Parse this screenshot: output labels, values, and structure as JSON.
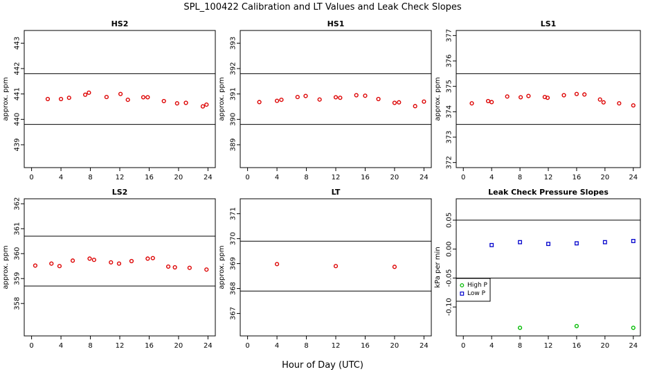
{
  "figure": {
    "title": "SPL_100422  Calibration and LT Values and Leak Check Slopes",
    "xlabel": "Hour of Day (UTC)"
  },
  "chart_data": [
    {
      "type": "scatter",
      "title": "HS2",
      "ylabel": "approx. ppm",
      "xlim": [
        -1,
        25
      ],
      "ylim": [
        438.1,
        443.5
      ],
      "xticks": [
        0,
        4,
        8,
        12,
        16,
        20,
        24
      ],
      "yticks": [
        439,
        440,
        441,
        442,
        443
      ],
      "hlines": [
        439.8,
        441.8
      ],
      "series": [
        {
          "color": "#dd0000",
          "marker": "circle",
          "x": [
            2.2,
            4,
            5.1,
            7.3,
            7.8,
            10.2,
            12.1,
            13.1,
            15.2,
            15.8,
            18,
            19.8,
            21,
            23.3,
            23.8
          ],
          "y": [
            440.8,
            440.8,
            440.85,
            440.97,
            441.05,
            440.88,
            441.0,
            440.77,
            440.87,
            440.87,
            440.72,
            440.63,
            440.65,
            440.51,
            440.58
          ]
        }
      ]
    },
    {
      "type": "scatter",
      "title": "HS1",
      "ylabel": "approx. ppm",
      "xlim": [
        -1,
        25
      ],
      "ylim": [
        388.1,
        393.5
      ],
      "xticks": [
        0,
        4,
        8,
        12,
        16,
        20,
        24
      ],
      "yticks": [
        389,
        390,
        391,
        392,
        393
      ],
      "hlines": [
        389.8,
        391.8
      ],
      "series": [
        {
          "color": "#dd0000",
          "marker": "circle",
          "x": [
            1.6,
            4,
            4.6,
            6.8,
            7.9,
            9.8,
            12,
            12.6,
            14.8,
            16,
            17.8,
            20,
            20.6,
            22.8,
            24
          ],
          "y": [
            390.68,
            390.73,
            390.77,
            390.88,
            390.92,
            390.78,
            390.87,
            390.85,
            390.95,
            390.93,
            390.8,
            390.65,
            390.67,
            390.52,
            390.7
          ]
        }
      ]
    },
    {
      "type": "scatter",
      "title": "LS1",
      "ylabel": "approx. ppm",
      "xlim": [
        -1,
        25
      ],
      "ylim": [
        371.8,
        377.2
      ],
      "xticks": [
        0,
        4,
        8,
        12,
        16,
        20,
        24
      ],
      "yticks": [
        372,
        373,
        374,
        375,
        376,
        377
      ],
      "hlines": [
        373.5,
        375.5
      ],
      "series": [
        {
          "color": "#dd0000",
          "marker": "circle",
          "x": [
            1.2,
            3.5,
            4,
            6.2,
            8.1,
            9.2,
            11.5,
            11.9,
            14.2,
            16,
            17.1,
            19.3,
            19.8,
            22,
            24
          ],
          "y": [
            374.33,
            374.42,
            374.38,
            374.6,
            374.57,
            374.62,
            374.58,
            374.55,
            374.65,
            374.7,
            374.68,
            374.48,
            374.37,
            374.33,
            374.25
          ]
        }
      ]
    },
    {
      "type": "scatter",
      "title": "LS2",
      "ylabel": "approx. ppm",
      "xlim": [
        -1,
        25
      ],
      "ylim": [
        356.7,
        362.2
      ],
      "xticks": [
        0,
        4,
        8,
        12,
        16,
        20,
        24
      ],
      "yticks": [
        358,
        359,
        360,
        361,
        362
      ],
      "hlines": [
        358.7,
        360.7
      ],
      "series": [
        {
          "color": "#dd0000",
          "marker": "circle",
          "x": [
            0.5,
            2.7,
            3.8,
            5.6,
            7.9,
            8.5,
            10.8,
            11.9,
            13.6,
            15.8,
            16.5,
            18.6,
            19.5,
            21.5,
            23.8
          ],
          "y": [
            359.52,
            359.6,
            359.5,
            359.72,
            359.8,
            359.75,
            359.65,
            359.6,
            359.7,
            359.8,
            359.82,
            359.48,
            359.45,
            359.43,
            359.36
          ]
        }
      ]
    },
    {
      "type": "scatter",
      "title": "LT",
      "ylabel": "approx. ppm",
      "xlim": [
        -1,
        25
      ],
      "ylim": [
        366.1,
        371.6
      ],
      "xticks": [
        0,
        4,
        8,
        12,
        16,
        20,
        24
      ],
      "yticks": [
        367,
        368,
        369,
        370,
        371
      ],
      "hlines": [
        367.9,
        369.9
      ],
      "series": [
        {
          "color": "#dd0000",
          "marker": "circle",
          "x": [
            4,
            12,
            20
          ],
          "y": [
            368.98,
            368.9,
            368.87
          ]
        }
      ]
    },
    {
      "type": "scatter",
      "title": "Leak Check Pressure Slopes",
      "ylabel": "kPa per min",
      "xlim": [
        -1,
        25
      ],
      "ylim": [
        -0.15,
        0.087
      ],
      "xticks": [
        0,
        4,
        8,
        12,
        16,
        20,
        24
      ],
      "yticks": [
        -0.1,
        -0.05,
        0.0,
        0.05
      ],
      "yticklabels": [
        "-0.10",
        "-0.05",
        "0.00",
        "0.05"
      ],
      "hlines": [
        0.05,
        -0.05
      ],
      "legend": {
        "placement": "left",
        "entries": [
          "High P",
          "Low P"
        ]
      },
      "series": [
        {
          "name": "High P",
          "color": "#00bb00",
          "marker": "circle",
          "x": [
            8,
            16,
            24
          ],
          "y": [
            -0.136,
            -0.133,
            -0.136
          ]
        },
        {
          "name": "Low P",
          "color": "#0000cc",
          "marker": "square",
          "x": [
            4,
            8,
            12,
            16,
            20,
            24
          ],
          "y": [
            0.007,
            0.012,
            0.009,
            0.01,
            0.012,
            0.014
          ]
        }
      ]
    }
  ]
}
